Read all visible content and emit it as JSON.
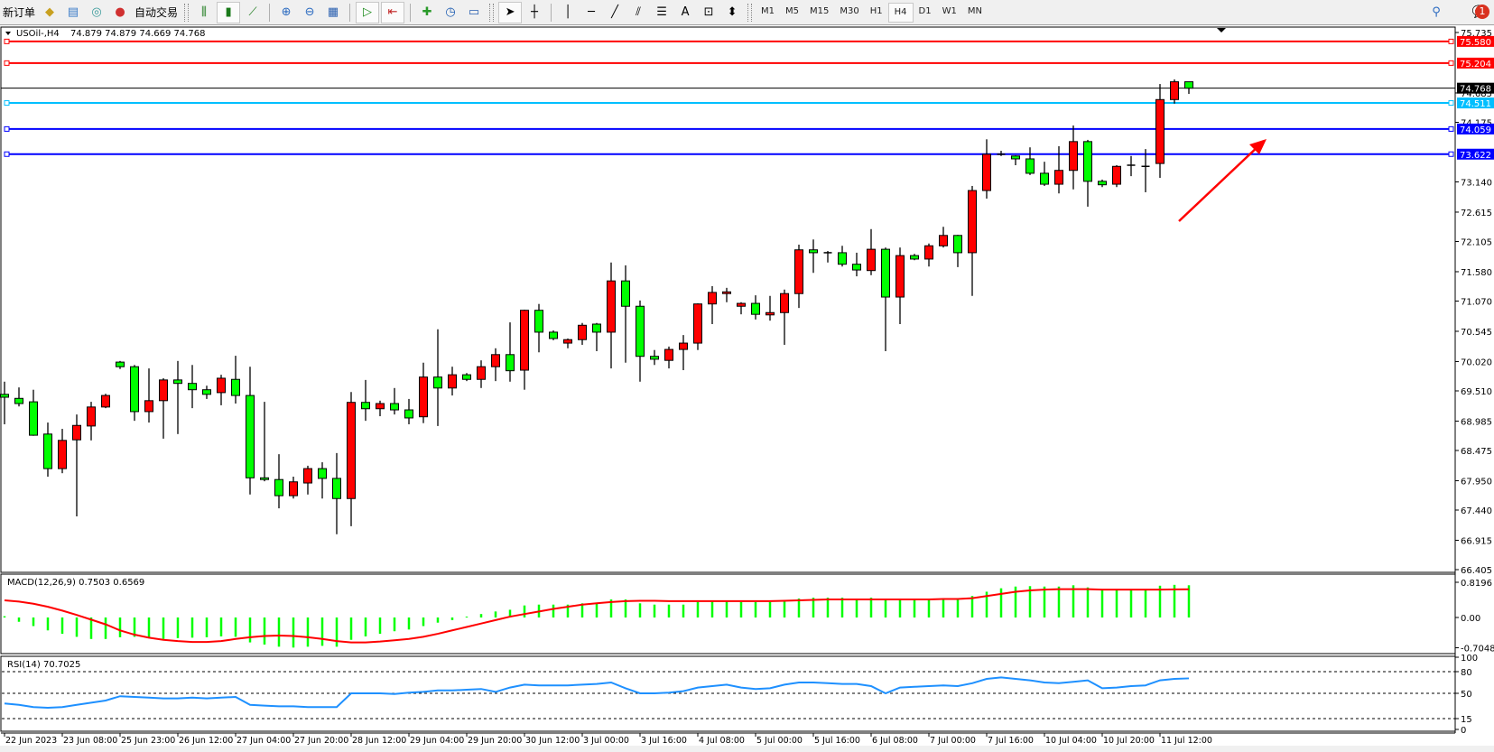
{
  "toolbar": {
    "new_order_label": "新订单",
    "auto_trading_label": "自动交易",
    "icons": [
      "new-order-icon",
      "market-watch-icon",
      "navigator-icon",
      "signals-icon",
      "auto-trading-icon",
      "bar-chart-icon",
      "candlestick-icon",
      "line-chart-icon",
      "zoom-in-icon",
      "zoom-out-icon",
      "tile-windows-icon",
      "auto-scroll-icon",
      "chart-shift-icon",
      "indicators-icon",
      "periods-icon",
      "templates-icon",
      "cursor-icon",
      "crosshair-icon",
      "vertical-line-icon",
      "horizontal-line-icon",
      "trendline-icon",
      "equidistant-channel-icon",
      "fibonacci-icon",
      "text-icon",
      "text-label-icon",
      "arrows-icon",
      "search-icon",
      "notification-icon"
    ],
    "timeframes": [
      "M1",
      "M5",
      "M15",
      "M30",
      "H1",
      "H4",
      "D1",
      "W1",
      "MN"
    ],
    "active_timeframe": "H4",
    "text_tool_label": "A",
    "notification_count": "1"
  },
  "chart_header": {
    "symbol": "USOil-,H4",
    "ohlc": "74.879 74.879 74.669 74.768"
  },
  "chart_data": [
    {
      "type": "candlestick",
      "symbol": "USOil-",
      "timeframe": "H4",
      "up_color": "#ff0000",
      "down_color": "#00ff00",
      "ylim": [
        66.405,
        75.735
      ],
      "price_ticks": [
        "75.735",
        "74.685",
        "74.175",
        "73.140",
        "72.615",
        "72.105",
        "71.580",
        "71.070",
        "70.545",
        "70.020",
        "69.510",
        "68.985",
        "68.475",
        "67.950",
        "67.440",
        "66.915",
        "66.405"
      ],
      "time_labels": [
        "22 Jun 2023",
        "23 Jun 08:00",
        "25 Jun 23:00",
        "26 Jun 12:00",
        "27 Jun 04:00",
        "27 Jun 20:00",
        "28 Jun 12:00",
        "29 Jun 04:00",
        "29 Jun 20:00",
        "30 Jun 12:00",
        "3 Jul 00:00",
        "3 Jul 16:00",
        "4 Jul 08:00",
        "5 Jul 00:00",
        "5 Jul 16:00",
        "6 Jul 08:00",
        "7 Jul 00:00",
        "7 Jul 16:00",
        "10 Jul 04:00",
        "10 Jul 20:00",
        "11 Jul 12:00"
      ],
      "time_label_every_n_bars": 4,
      "ohlc": [
        [
          69.45,
          69.67,
          68.93,
          69.4
        ],
        [
          69.38,
          69.57,
          69.24,
          69.29
        ],
        [
          69.32,
          69.53,
          68.73,
          68.74
        ],
        [
          68.76,
          68.96,
          68.02,
          68.16
        ],
        [
          68.16,
          68.85,
          68.08,
          68.65
        ],
        [
          68.66,
          69.1,
          67.33,
          68.91
        ],
        [
          68.9,
          69.32,
          68.65,
          69.23
        ],
        [
          69.23,
          69.46,
          69.21,
          69.43
        ],
        [
          70.01,
          70.03,
          69.89,
          69.93
        ],
        [
          69.93,
          69.96,
          68.99,
          69.15
        ],
        [
          69.15,
          69.9,
          68.96,
          69.34
        ],
        [
          69.34,
          69.73,
          68.68,
          69.7
        ],
        [
          69.7,
          70.03,
          68.76,
          69.64
        ],
        [
          69.64,
          69.96,
          69.21,
          69.53
        ],
        [
          69.53,
          69.6,
          69.37,
          69.45
        ],
        [
          69.48,
          69.79,
          69.26,
          69.73
        ],
        [
          69.71,
          70.12,
          69.29,
          69.43
        ],
        [
          69.43,
          69.93,
          67.71,
          68.0
        ],
        [
          68.0,
          69.32,
          67.94,
          67.97
        ],
        [
          67.97,
          68.41,
          67.47,
          67.69
        ],
        [
          67.69,
          68.02,
          67.64,
          67.93
        ],
        [
          67.91,
          68.21,
          67.71,
          68.16
        ],
        [
          68.16,
          68.27,
          67.64,
          67.99
        ],
        [
          67.99,
          68.43,
          67.02,
          67.64
        ],
        [
          67.64,
          69.49,
          67.16,
          69.31
        ],
        [
          69.31,
          69.7,
          68.99,
          69.2
        ],
        [
          69.2,
          69.34,
          69.07,
          69.29
        ],
        [
          69.29,
          69.56,
          69.1,
          69.18
        ],
        [
          69.18,
          69.37,
          68.93,
          69.04
        ],
        [
          69.06,
          70.0,
          68.95,
          69.75
        ],
        [
          69.75,
          70.58,
          68.9,
          69.56
        ],
        [
          69.56,
          69.93,
          69.43,
          69.79
        ],
        [
          69.79,
          69.82,
          69.68,
          69.71
        ],
        [
          69.71,
          70.04,
          69.56,
          69.93
        ],
        [
          69.93,
          70.25,
          69.68,
          70.14
        ],
        [
          70.14,
          70.7,
          69.67,
          69.86
        ],
        [
          69.87,
          70.92,
          69.53,
          70.91
        ],
        [
          70.91,
          71.02,
          70.18,
          70.53
        ],
        [
          70.53,
          70.56,
          70.39,
          70.42
        ],
        [
          70.34,
          70.42,
          70.25,
          70.4
        ],
        [
          70.4,
          70.69,
          70.31,
          70.65
        ],
        [
          70.67,
          70.69,
          70.2,
          70.53
        ],
        [
          70.53,
          71.74,
          69.9,
          71.42
        ],
        [
          71.42,
          71.69,
          70.0,
          70.98
        ],
        [
          70.98,
          71.08,
          69.67,
          70.11
        ],
        [
          70.11,
          70.22,
          69.96,
          70.06
        ],
        [
          70.04,
          70.28,
          69.9,
          70.23
        ],
        [
          70.23,
          70.48,
          69.87,
          70.34
        ],
        [
          70.34,
          71.03,
          70.22,
          71.02
        ],
        [
          71.02,
          71.33,
          70.67,
          71.22
        ],
        [
          71.2,
          71.3,
          71.05,
          71.23
        ],
        [
          70.98,
          71.05,
          70.84,
          71.03
        ],
        [
          71.03,
          71.17,
          70.75,
          70.84
        ],
        [
          70.83,
          71.16,
          70.73,
          70.87
        ],
        [
          70.87,
          71.27,
          70.31,
          71.2
        ],
        [
          71.2,
          72.05,
          70.95,
          71.96
        ],
        [
          71.96,
          72.14,
          71.56,
          71.91
        ],
        [
          71.91,
          71.94,
          71.74,
          71.91
        ],
        [
          71.91,
          72.03,
          71.67,
          71.71
        ],
        [
          71.71,
          71.91,
          71.5,
          71.61
        ],
        [
          71.6,
          72.32,
          71.52,
          71.97
        ],
        [
          71.97,
          72.0,
          70.2,
          71.14
        ],
        [
          71.14,
          72.0,
          70.67,
          71.86
        ],
        [
          71.86,
          71.89,
          71.78,
          71.8
        ],
        [
          71.8,
          72.07,
          71.67,
          72.03
        ],
        [
          72.03,
          72.36,
          72.0,
          72.21
        ],
        [
          72.21,
          72.22,
          71.66,
          71.91
        ],
        [
          71.91,
          73.07,
          71.16,
          72.99
        ],
        [
          72.99,
          73.88,
          72.85,
          73.62
        ],
        [
          73.62,
          73.68,
          73.59,
          73.61
        ],
        [
          73.59,
          73.6,
          73.43,
          73.54
        ],
        [
          73.54,
          73.74,
          73.26,
          73.29
        ],
        [
          73.29,
          73.49,
          73.07,
          73.1
        ],
        [
          73.1,
          73.76,
          72.94,
          73.34
        ],
        [
          73.34,
          74.12,
          73.01,
          73.84
        ],
        [
          73.84,
          73.87,
          72.71,
          73.15
        ],
        [
          73.15,
          73.18,
          73.05,
          73.09
        ],
        [
          73.1,
          73.43,
          73.05,
          73.41
        ],
        [
          73.43,
          73.59,
          73.24,
          73.43
        ],
        [
          73.41,
          73.71,
          72.96,
          73.41
        ],
        [
          73.46,
          74.84,
          73.21,
          74.57
        ],
        [
          74.57,
          74.92,
          74.5,
          74.879
        ],
        [
          74.879,
          74.879,
          74.669,
          74.768
        ]
      ],
      "current_price": {
        "value": "74.768",
        "color": "#000000"
      },
      "horizontal_lines": [
        {
          "value": "75.580",
          "color": "#ff0000"
        },
        {
          "value": "75.204",
          "color": "#ff0000"
        },
        {
          "value": "74.511",
          "color": "#00bfff"
        },
        {
          "value": "74.059",
          "color": "#0000ff"
        },
        {
          "value": "73.622",
          "color": "#0000ff"
        }
      ],
      "annotation_arrow": {
        "color": "#ff0000",
        "direction": "up-right"
      }
    },
    {
      "type": "macd",
      "label": "MACD(12,26,9) 0.7503 0.6569",
      "ylim": [
        -0.7048,
        0.8196
      ],
      "ticks": [
        "0.8196",
        "0.00",
        "-0.7048"
      ],
      "histogram_color": "#00ff00",
      "signal_color": "#ff0000",
      "histogram": [
        0.03,
        -0.1,
        -0.2,
        -0.3,
        -0.38,
        -0.45,
        -0.5,
        -0.5,
        -0.46,
        -0.45,
        -0.47,
        -0.5,
        -0.48,
        -0.47,
        -0.46,
        -0.44,
        -0.45,
        -0.58,
        -0.63,
        -0.68,
        -0.7,
        -0.68,
        -0.66,
        -0.68,
        -0.52,
        -0.44,
        -0.38,
        -0.32,
        -0.28,
        -0.2,
        -0.12,
        -0.06,
        0.02,
        0.08,
        0.14,
        0.18,
        0.28,
        0.3,
        0.3,
        0.3,
        0.33,
        0.33,
        0.42,
        0.42,
        0.33,
        0.3,
        0.3,
        0.3,
        0.36,
        0.38,
        0.38,
        0.36,
        0.36,
        0.36,
        0.38,
        0.44,
        0.46,
        0.46,
        0.46,
        0.44,
        0.46,
        0.4,
        0.42,
        0.42,
        0.43,
        0.44,
        0.42,
        0.5,
        0.6,
        0.68,
        0.72,
        0.73,
        0.72,
        0.72,
        0.75,
        0.7,
        0.66,
        0.66,
        0.66,
        0.66,
        0.74,
        0.76,
        0.7503
      ],
      "signal": [
        0.4,
        0.37,
        0.32,
        0.25,
        0.16,
        0.06,
        -0.05,
        -0.16,
        -0.3,
        -0.4,
        -0.47,
        -0.52,
        -0.55,
        -0.57,
        -0.57,
        -0.55,
        -0.5,
        -0.46,
        -0.43,
        -0.42,
        -0.43,
        -0.46,
        -0.5,
        -0.55,
        -0.58,
        -0.58,
        -0.56,
        -0.53,
        -0.5,
        -0.45,
        -0.38,
        -0.3,
        -0.22,
        -0.14,
        -0.06,
        0.02,
        0.08,
        0.14,
        0.2,
        0.25,
        0.3,
        0.33,
        0.36,
        0.38,
        0.39,
        0.39,
        0.38,
        0.38,
        0.38,
        0.38,
        0.38,
        0.38,
        0.38,
        0.38,
        0.39,
        0.4,
        0.41,
        0.42,
        0.42,
        0.42,
        0.42,
        0.42,
        0.42,
        0.42,
        0.42,
        0.43,
        0.43,
        0.45,
        0.5,
        0.55,
        0.6,
        0.63,
        0.65,
        0.66,
        0.66,
        0.66,
        0.65,
        0.65,
        0.65,
        0.65,
        0.65,
        0.655,
        0.6569
      ]
    },
    {
      "type": "line",
      "label": "RSI(14) 70.7025",
      "ylim": [
        0,
        100
      ],
      "ticks": [
        "100",
        "80",
        "50",
        "15",
        "0"
      ],
      "levels": [
        80,
        50,
        15
      ],
      "line_color": "#1e90ff",
      "values": [
        36,
        34,
        31,
        30,
        31,
        34,
        37,
        40,
        46,
        45,
        44,
        43,
        43,
        44,
        43,
        44,
        45,
        34,
        33,
        32,
        32,
        31,
        31,
        31,
        50,
        50,
        50,
        49,
        51,
        52,
        54,
        54,
        55,
        56,
        52,
        58,
        62,
        61,
        61,
        61,
        62,
        63,
        65,
        57,
        50,
        50,
        51,
        53,
        58,
        60,
        62,
        58,
        56,
        57,
        62,
        65,
        65,
        64,
        63,
        63,
        60,
        50,
        58,
        59,
        60,
        61,
        60,
        64,
        70,
        72,
        70,
        68,
        65,
        64,
        66,
        68,
        57,
        58,
        60,
        61,
        68,
        70,
        70.7025
      ]
    }
  ]
}
